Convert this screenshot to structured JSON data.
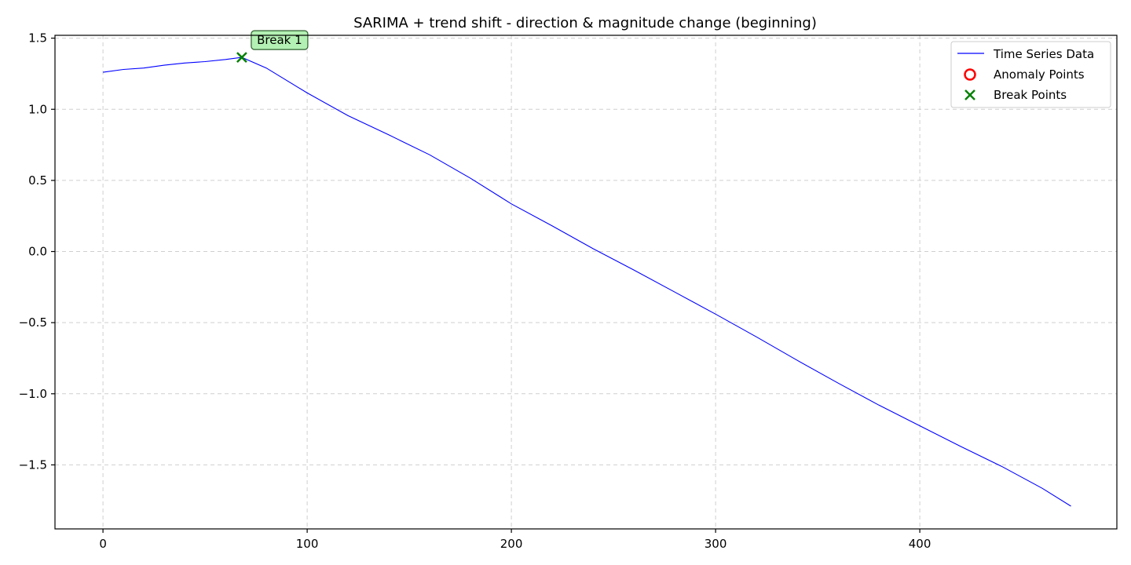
{
  "chart_data": {
    "type": "line",
    "title": "SARIMA + trend shift - direction & magnitude change (beginning)",
    "xlabel": "",
    "ylabel": "",
    "xlim": [
      -23.5,
      496.5
    ],
    "ylim": [
      -1.95,
      1.52
    ],
    "xticks": [
      0,
      100,
      200,
      300,
      400
    ],
    "xtick_labels": [
      "0",
      "100",
      "200",
      "300",
      "400"
    ],
    "yticks": [
      -1.5,
      -1.0,
      -0.5,
      0.0,
      0.5,
      1.0,
      1.5
    ],
    "ytick_labels": [
      "−1.5",
      "−1.0",
      "−0.5",
      "0.0",
      "0.5",
      "1.0",
      "1.5"
    ],
    "grid": true,
    "legend_position": "top-right",
    "series": [
      {
        "name": "Time Series Data",
        "color": "#0000ff",
        "x": [
          0,
          10,
          20,
          30,
          40,
          50,
          60,
          68,
          80,
          100,
          120,
          140,
          160,
          180,
          200,
          220,
          240,
          260,
          280,
          300,
          320,
          340,
          360,
          380,
          400,
          420,
          440,
          460,
          474
        ],
        "y": [
          1.26,
          1.28,
          1.29,
          1.31,
          1.325,
          1.335,
          1.35,
          1.365,
          1.29,
          1.115,
          0.955,
          0.82,
          0.68,
          0.515,
          0.335,
          0.18,
          0.02,
          -0.13,
          -0.285,
          -0.44,
          -0.6,
          -0.765,
          -0.925,
          -1.08,
          -1.225,
          -1.37,
          -1.51,
          -1.665,
          -1.79
        ]
      }
    ],
    "anomaly_points": {
      "name": "Anomaly Points",
      "color": "#ff0000",
      "points": []
    },
    "break_points": {
      "name": "Break Points",
      "color": "#008000",
      "points": [
        {
          "x": 68,
          "y": 1.365,
          "label": "Break 1"
        }
      ]
    }
  }
}
